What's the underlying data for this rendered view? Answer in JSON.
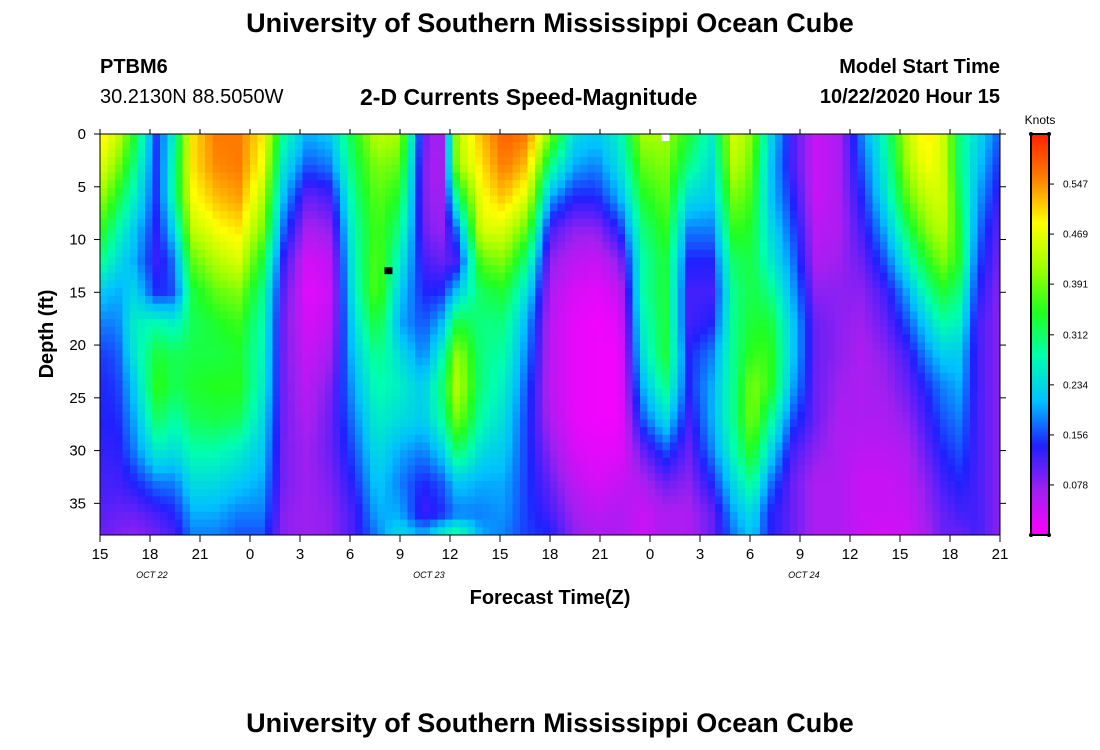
{
  "header": {
    "title": "University of Southern Mississippi Ocean Cube",
    "station": "PTBM6",
    "coords": "30.2130N 88.5050W",
    "subtitle": "2-D Currents Speed-Magnitude",
    "start_label": "Model Start Time",
    "start_value": "10/22/2020 Hour 15"
  },
  "footer": {
    "title": "University of Southern Mississippi Ocean Cube"
  },
  "chart_data": {
    "type": "heatmap",
    "title": "2-D Currents Speed-Magnitude",
    "xlabel": "Forecast Time(Z)",
    "ylabel": "Depth (ft)",
    "x_range_hours_from_start": [
      0,
      78
    ],
    "x_ticks": [
      "15",
      "18",
      "21",
      "0",
      "3",
      "6",
      "9",
      "12",
      "15",
      "18",
      "21",
      "0",
      "3",
      "6",
      "9",
      "12",
      "15",
      "18",
      "21"
    ],
    "date_labels": [
      {
        "label": "OCT 22",
        "at_hour": 4.5
      },
      {
        "label": "OCT 23",
        "at_hour": 28.5
      },
      {
        "label": "OCT 24",
        "at_hour": 61
      }
    ],
    "ylim": [
      0,
      38
    ],
    "y_ticks": [
      0,
      5,
      10,
      15,
      20,
      25,
      30,
      35
    ],
    "y_inverted": true,
    "colorbar": {
      "title": "Knots",
      "min": 0,
      "max": 0.625,
      "ticks": [
        "0.547",
        "0.469",
        "0.391",
        "0.312",
        "0.234",
        "0.156",
        "0.078"
      ],
      "tick_values": [
        0.547,
        0.469,
        0.391,
        0.312,
        0.234,
        0.156,
        0.078
      ],
      "colors": [
        "#ff00ff",
        "#a020f0",
        "#2020ff",
        "#00c0ff",
        "#00ffb0",
        "#20ff20",
        "#a0ff00",
        "#ffff00",
        "#ff8000",
        "#ff2000"
      ]
    },
    "markers": [
      {
        "hour": 25,
        "depth": 13,
        "color": "#000000"
      },
      {
        "hour": 49,
        "depth": 0.3,
        "color": "#ffffff"
      }
    ],
    "depth_rows": [
      0,
      3,
      6,
      9,
      12,
      15,
      18,
      21,
      24,
      27,
      30,
      33,
      36,
      38
    ],
    "columns": [
      {
        "hour": 0,
        "speeds": [
          0.5,
          0.47,
          0.42,
          0.36,
          0.3,
          0.22,
          0.18,
          0.15,
          0.14,
          0.14,
          0.13,
          0.12,
          0.11,
          0.1
        ]
      },
      {
        "hour": 1.5,
        "speeds": [
          0.45,
          0.4,
          0.34,
          0.28,
          0.24,
          0.2,
          0.18,
          0.16,
          0.15,
          0.14,
          0.13,
          0.12,
          0.1,
          0.09
        ]
      },
      {
        "hour": 3,
        "speeds": [
          0.34,
          0.3,
          0.26,
          0.22,
          0.2,
          0.23,
          0.26,
          0.25,
          0.22,
          0.2,
          0.18,
          0.14,
          0.1,
          0.08
        ]
      },
      {
        "hour": 5,
        "speeds": [
          0.14,
          0.14,
          0.14,
          0.13,
          0.12,
          0.14,
          0.28,
          0.34,
          0.36,
          0.32,
          0.26,
          0.18,
          0.12,
          0.1
        ]
      },
      {
        "hour": 6.5,
        "speeds": [
          0.28,
          0.3,
          0.3,
          0.24,
          0.18,
          0.16,
          0.26,
          0.32,
          0.32,
          0.28,
          0.24,
          0.18,
          0.14,
          0.12
        ]
      },
      {
        "hour": 8,
        "speeds": [
          0.5,
          0.5,
          0.48,
          0.44,
          0.38,
          0.33,
          0.32,
          0.33,
          0.34,
          0.32,
          0.28,
          0.24,
          0.2,
          0.18
        ]
      },
      {
        "hour": 10,
        "speeds": [
          0.56,
          0.55,
          0.52,
          0.48,
          0.43,
          0.38,
          0.34,
          0.33,
          0.35,
          0.33,
          0.28,
          0.24,
          0.2,
          0.18
        ]
      },
      {
        "hour": 12,
        "speeds": [
          0.56,
          0.56,
          0.54,
          0.5,
          0.46,
          0.4,
          0.36,
          0.34,
          0.35,
          0.32,
          0.26,
          0.22,
          0.18,
          0.16
        ]
      },
      {
        "hour": 14,
        "speeds": [
          0.5,
          0.48,
          0.44,
          0.4,
          0.34,
          0.3,
          0.28,
          0.27,
          0.26,
          0.24,
          0.22,
          0.2,
          0.18,
          0.16
        ]
      },
      {
        "hour": 16,
        "speeds": [
          0.28,
          0.24,
          0.2,
          0.16,
          0.12,
          0.1,
          0.09,
          0.09,
          0.09,
          0.09,
          0.09,
          0.09,
          0.08,
          0.08
        ]
      },
      {
        "hour": 18,
        "speeds": [
          0.2,
          0.16,
          0.1,
          0.06,
          0.03,
          0.02,
          0.03,
          0.04,
          0.05,
          0.06,
          0.07,
          0.07,
          0.07,
          0.07
        ]
      },
      {
        "hour": 20,
        "speeds": [
          0.22,
          0.18,
          0.12,
          0.08,
          0.05,
          0.04,
          0.05,
          0.07,
          0.09,
          0.1,
          0.1,
          0.09,
          0.08,
          0.08
        ]
      },
      {
        "hour": 22,
        "speeds": [
          0.34,
          0.32,
          0.3,
          0.28,
          0.27,
          0.26,
          0.24,
          0.22,
          0.2,
          0.18,
          0.16,
          0.14,
          0.12,
          0.12
        ]
      },
      {
        "hour": 24,
        "speeds": [
          0.44,
          0.4,
          0.38,
          0.37,
          0.38,
          0.38,
          0.34,
          0.3,
          0.28,
          0.26,
          0.24,
          0.22,
          0.2,
          0.18
        ]
      },
      {
        "hour": 26,
        "speeds": [
          0.42,
          0.38,
          0.34,
          0.3,
          0.26,
          0.22,
          0.2,
          0.24,
          0.26,
          0.24,
          0.2,
          0.18,
          0.2,
          0.24
        ]
      },
      {
        "hour": 28,
        "speeds": [
          0.1,
          0.09,
          0.09,
          0.1,
          0.12,
          0.14,
          0.16,
          0.18,
          0.22,
          0.22,
          0.18,
          0.14,
          0.12,
          0.2
        ]
      },
      {
        "hour": 29.5,
        "speeds": [
          0.05,
          0.05,
          0.06,
          0.07,
          0.1,
          0.14,
          0.2,
          0.26,
          0.3,
          0.28,
          0.22,
          0.16,
          0.14,
          0.26
        ]
      },
      {
        "hour": 31,
        "speeds": [
          0.44,
          0.42,
          0.3,
          0.18,
          0.12,
          0.22,
          0.34,
          0.42,
          0.44,
          0.4,
          0.32,
          0.22,
          0.18,
          0.3
        ]
      },
      {
        "hour": 33,
        "speeds": [
          0.52,
          0.5,
          0.48,
          0.46,
          0.38,
          0.32,
          0.3,
          0.3,
          0.3,
          0.28,
          0.24,
          0.2,
          0.18,
          0.2
        ]
      },
      {
        "hour": 35,
        "speeds": [
          0.58,
          0.56,
          0.52,
          0.46,
          0.4,
          0.34,
          0.3,
          0.28,
          0.26,
          0.24,
          0.22,
          0.2,
          0.19,
          0.18
        ]
      },
      {
        "hour": 37,
        "speeds": [
          0.56,
          0.52,
          0.46,
          0.38,
          0.3,
          0.24,
          0.2,
          0.18,
          0.16,
          0.15,
          0.15,
          0.15,
          0.15,
          0.15
        ]
      },
      {
        "hour": 39,
        "speeds": [
          0.4,
          0.3,
          0.2,
          0.12,
          0.08,
          0.06,
          0.05,
          0.05,
          0.05,
          0.06,
          0.08,
          0.1,
          0.12,
          0.14
        ]
      },
      {
        "hour": 41,
        "speeds": [
          0.24,
          0.2,
          0.14,
          0.08,
          0.05,
          0.03,
          0.02,
          0.02,
          0.02,
          0.02,
          0.03,
          0.05,
          0.07,
          0.08
        ]
      },
      {
        "hour": 43,
        "speeds": [
          0.22,
          0.18,
          0.14,
          0.08,
          0.04,
          0.02,
          0.01,
          0.01,
          0.01,
          0.01,
          0.02,
          0.03,
          0.05,
          0.06
        ]
      },
      {
        "hour": 45,
        "speeds": [
          0.26,
          0.24,
          0.2,
          0.14,
          0.08,
          0.04,
          0.02,
          0.01,
          0.01,
          0.01,
          0.02,
          0.04,
          0.06,
          0.06
        ]
      },
      {
        "hour": 47,
        "speeds": [
          0.42,
          0.38,
          0.34,
          0.3,
          0.28,
          0.28,
          0.26,
          0.24,
          0.2,
          0.16,
          0.1,
          0.06,
          0.04,
          0.04
        ]
      },
      {
        "hour": 49,
        "speeds": [
          0.42,
          0.4,
          0.38,
          0.36,
          0.34,
          0.34,
          0.34,
          0.34,
          0.3,
          0.24,
          0.16,
          0.1,
          0.06,
          0.06
        ]
      },
      {
        "hour": 51,
        "speeds": [
          0.34,
          0.3,
          0.24,
          0.18,
          0.14,
          0.12,
          0.12,
          0.14,
          0.14,
          0.12,
          0.1,
          0.08,
          0.06,
          0.06
        ]
      },
      {
        "hour": 53,
        "speeds": [
          0.26,
          0.24,
          0.22,
          0.18,
          0.14,
          0.12,
          0.14,
          0.18,
          0.2,
          0.2,
          0.18,
          0.14,
          0.1,
          0.1
        ]
      },
      {
        "hour": 55,
        "speeds": [
          0.46,
          0.44,
          0.4,
          0.36,
          0.32,
          0.3,
          0.3,
          0.3,
          0.3,
          0.3,
          0.28,
          0.24,
          0.2,
          0.18
        ]
      },
      {
        "hour": 56.5,
        "speeds": [
          0.4,
          0.38,
          0.36,
          0.34,
          0.33,
          0.33,
          0.34,
          0.36,
          0.4,
          0.4,
          0.36,
          0.3,
          0.24,
          0.22
        ]
      },
      {
        "hour": 58,
        "speeds": [
          0.24,
          0.22,
          0.22,
          0.24,
          0.26,
          0.3,
          0.34,
          0.36,
          0.36,
          0.3,
          0.24,
          0.18,
          0.14,
          0.14
        ]
      },
      {
        "hour": 60,
        "speeds": [
          0.12,
          0.12,
          0.14,
          0.16,
          0.18,
          0.2,
          0.22,
          0.22,
          0.2,
          0.16,
          0.12,
          0.1,
          0.1,
          0.1
        ]
      },
      {
        "hour": 62,
        "speeds": [
          0.04,
          0.04,
          0.04,
          0.05,
          0.06,
          0.08,
          0.1,
          0.1,
          0.1,
          0.1,
          0.08,
          0.06,
          0.06,
          0.06
        ]
      },
      {
        "hour": 64,
        "speeds": [
          0.06,
          0.06,
          0.06,
          0.06,
          0.07,
          0.08,
          0.08,
          0.08,
          0.07,
          0.06,
          0.06,
          0.06,
          0.06,
          0.06
        ]
      },
      {
        "hour": 66,
        "speeds": [
          0.18,
          0.16,
          0.14,
          0.12,
          0.1,
          0.08,
          0.07,
          0.06,
          0.06,
          0.06,
          0.05,
          0.04,
          0.04,
          0.04
        ]
      },
      {
        "hour": 68,
        "speeds": [
          0.28,
          0.26,
          0.24,
          0.2,
          0.16,
          0.12,
          0.1,
          0.08,
          0.07,
          0.06,
          0.05,
          0.04,
          0.04,
          0.03
        ]
      },
      {
        "hour": 70,
        "speeds": [
          0.44,
          0.42,
          0.38,
          0.32,
          0.26,
          0.2,
          0.16,
          0.12,
          0.1,
          0.08,
          0.06,
          0.05,
          0.04,
          0.04
        ]
      },
      {
        "hour": 71.5,
        "speeds": [
          0.5,
          0.48,
          0.44,
          0.4,
          0.34,
          0.28,
          0.22,
          0.18,
          0.14,
          0.12,
          0.1,
          0.08,
          0.07,
          0.06
        ]
      },
      {
        "hour": 73,
        "speeds": [
          0.46,
          0.46,
          0.46,
          0.44,
          0.4,
          0.34,
          0.28,
          0.22,
          0.18,
          0.16,
          0.14,
          0.12,
          0.1,
          0.1
        ]
      },
      {
        "hour": 74.5,
        "speeds": [
          0.3,
          0.3,
          0.32,
          0.34,
          0.34,
          0.3,
          0.26,
          0.22,
          0.2,
          0.18,
          0.16,
          0.14,
          0.12,
          0.1
        ]
      },
      {
        "hour": 76,
        "speeds": [
          0.24,
          0.22,
          0.2,
          0.18,
          0.16,
          0.14,
          0.12,
          0.12,
          0.12,
          0.12,
          0.12,
          0.12,
          0.12,
          0.12
        ]
      },
      {
        "hour": 78,
        "speeds": [
          0.16,
          0.14,
          0.12,
          0.1,
          0.09,
          0.08,
          0.08,
          0.08,
          0.08,
          0.08,
          0.08,
          0.08,
          0.08,
          0.08
        ]
      }
    ]
  }
}
